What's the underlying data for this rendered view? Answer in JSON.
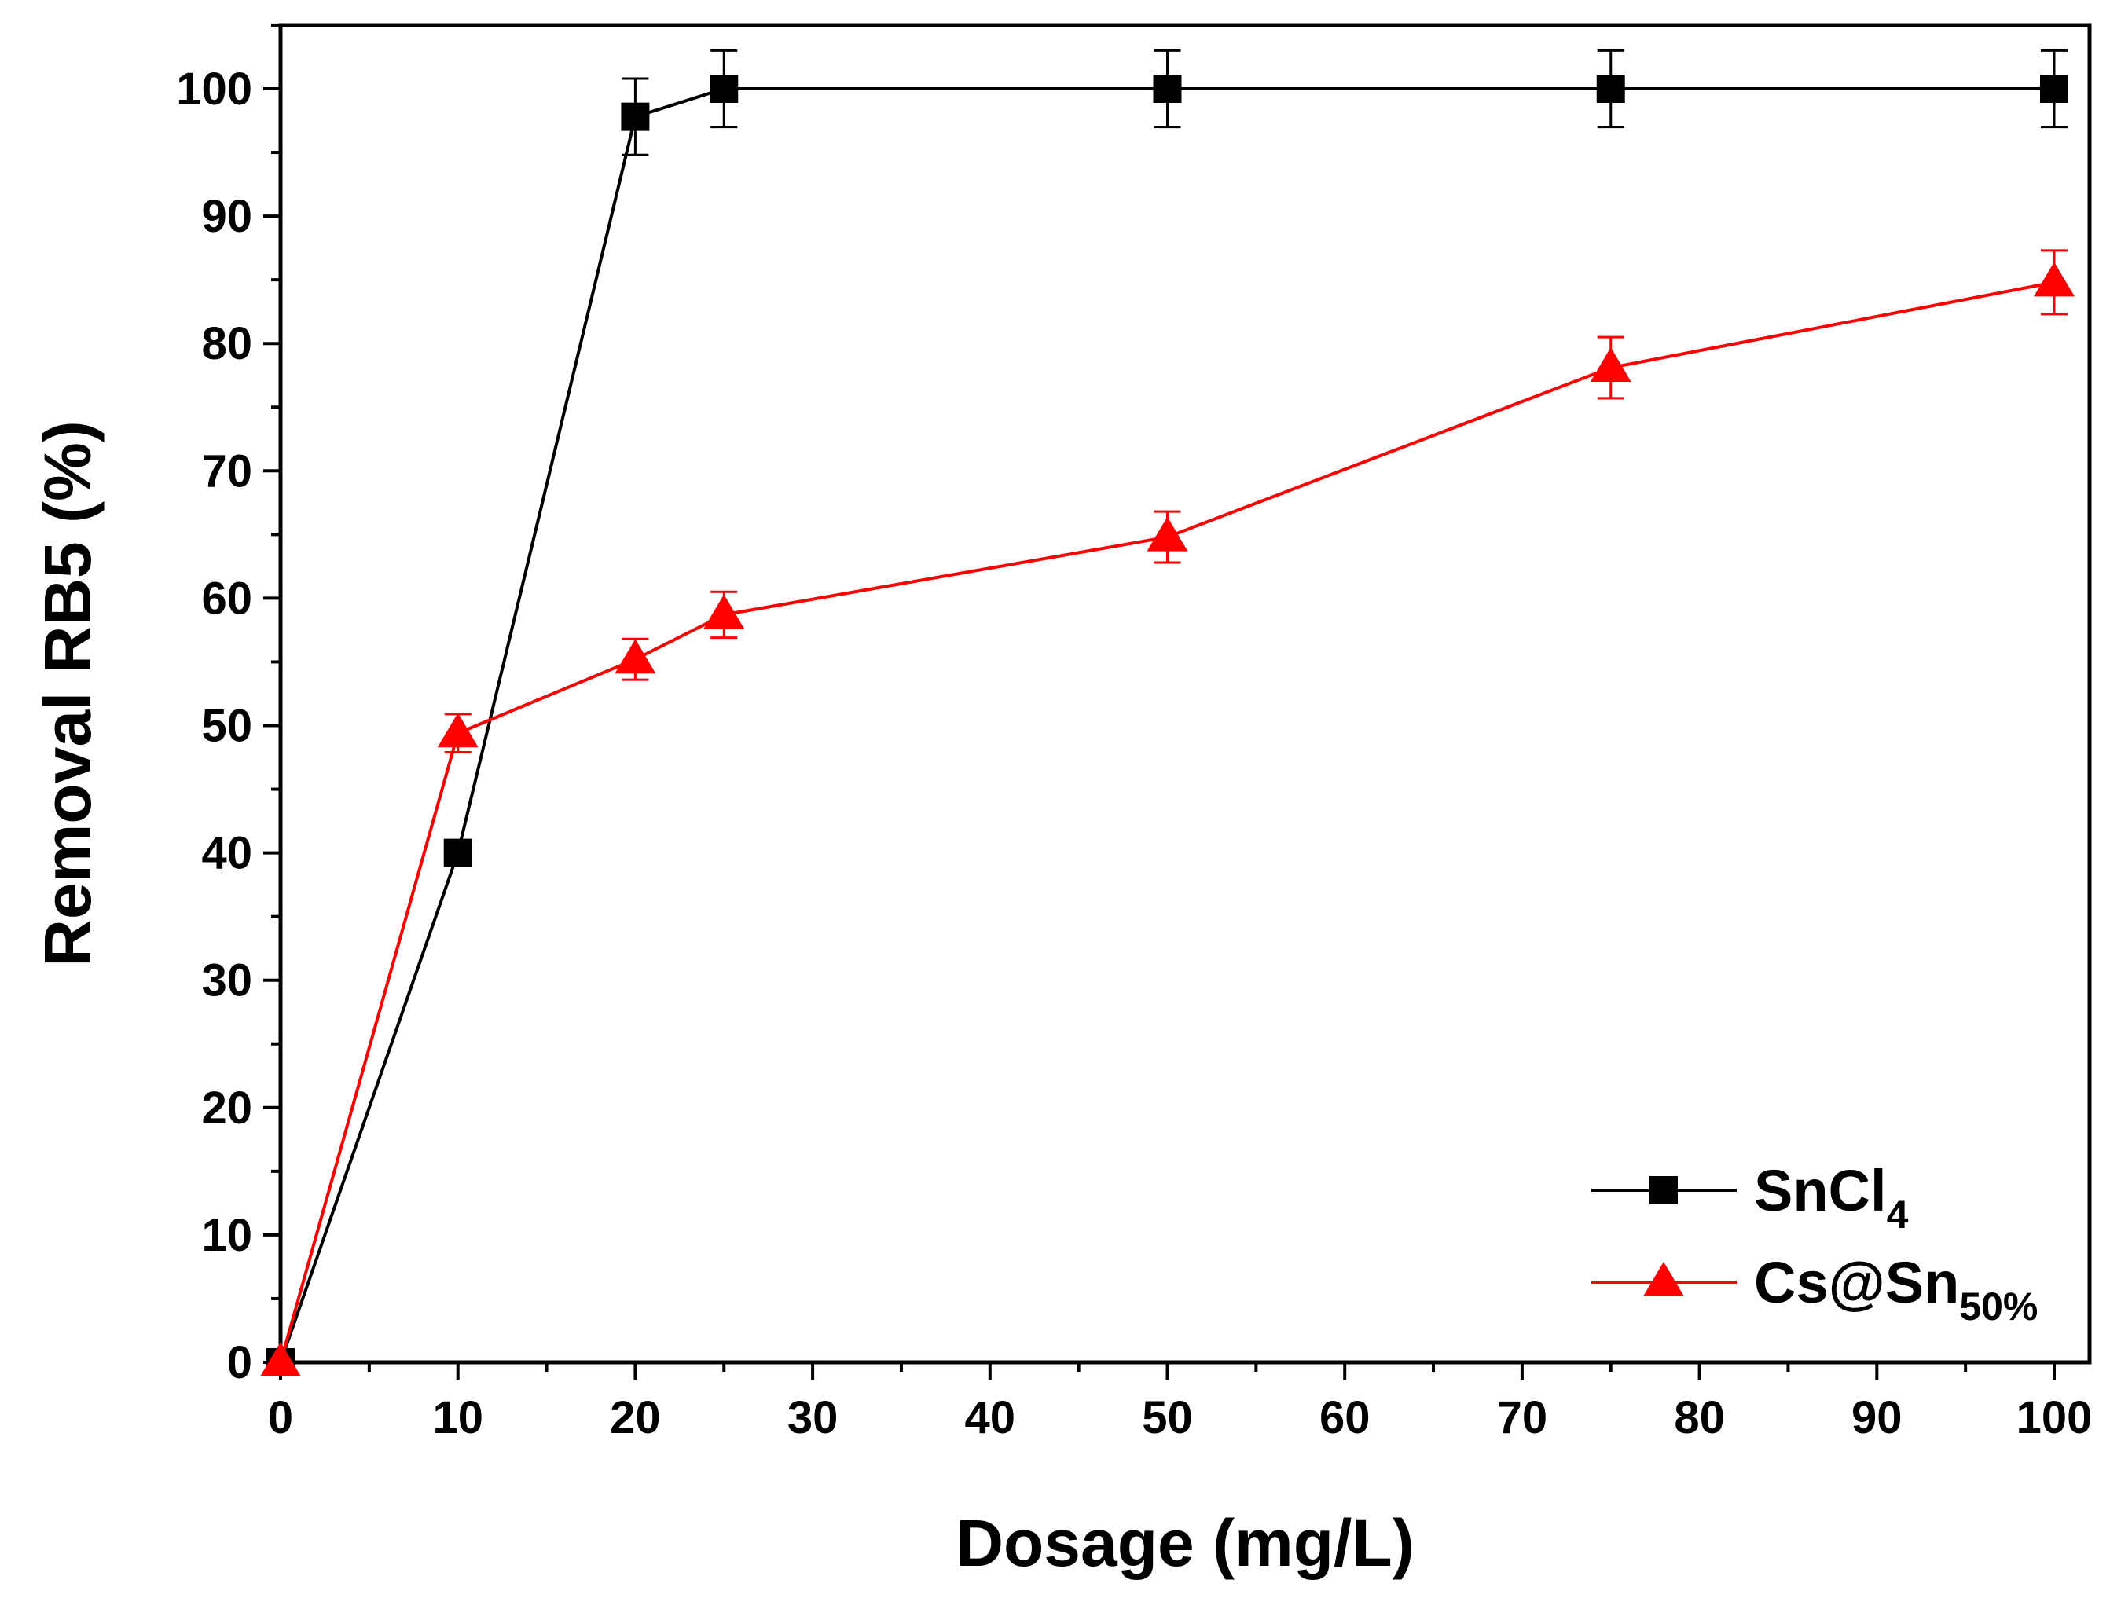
{
  "chart_data": {
    "type": "line",
    "xlabel": "Dosage (mg/L)",
    "ylabel": "Removal RB5 (%)",
    "xlim": [
      0,
      102
    ],
    "ylim": [
      0,
      105
    ],
    "xticks": [
      0,
      10,
      20,
      30,
      40,
      50,
      60,
      70,
      80,
      90,
      100
    ],
    "yticks": [
      0,
      10,
      20,
      30,
      40,
      50,
      60,
      70,
      80,
      90,
      100
    ],
    "xtick_labels": [
      "0",
      "10",
      "20",
      "30",
      "40",
      "50",
      "60",
      "70",
      "80",
      "90",
      "100"
    ],
    "ytick_labels": [
      "0",
      "10",
      "20",
      "30",
      "40",
      "50",
      "60",
      "70",
      "80",
      "90",
      "100"
    ],
    "grid": false,
    "legend_position": "bottom-right",
    "series": [
      {
        "name": "SnCl4",
        "label_main": "SnCl",
        "label_sub": "4",
        "color": "#000000",
        "marker": "square",
        "x": [
          0,
          10,
          20,
          25,
          50,
          75,
          100
        ],
        "y": [
          0,
          40,
          97.8,
          100,
          100,
          100,
          100
        ],
        "err": [
          0,
          0,
          3,
          3,
          3,
          3,
          3
        ]
      },
      {
        "name": "Cs@Sn50%",
        "label_main": "Cs@Sn",
        "label_sub": "50%",
        "color": "#ff0000",
        "marker": "triangle",
        "x": [
          0,
          10,
          20,
          25,
          50,
          75,
          100
        ],
        "y": [
          0,
          49.4,
          55.2,
          58.7,
          64.8,
          78.1,
          84.8
        ],
        "err": [
          0,
          1.5,
          1.6,
          1.8,
          2,
          2.4,
          2.5
        ]
      }
    ]
  }
}
